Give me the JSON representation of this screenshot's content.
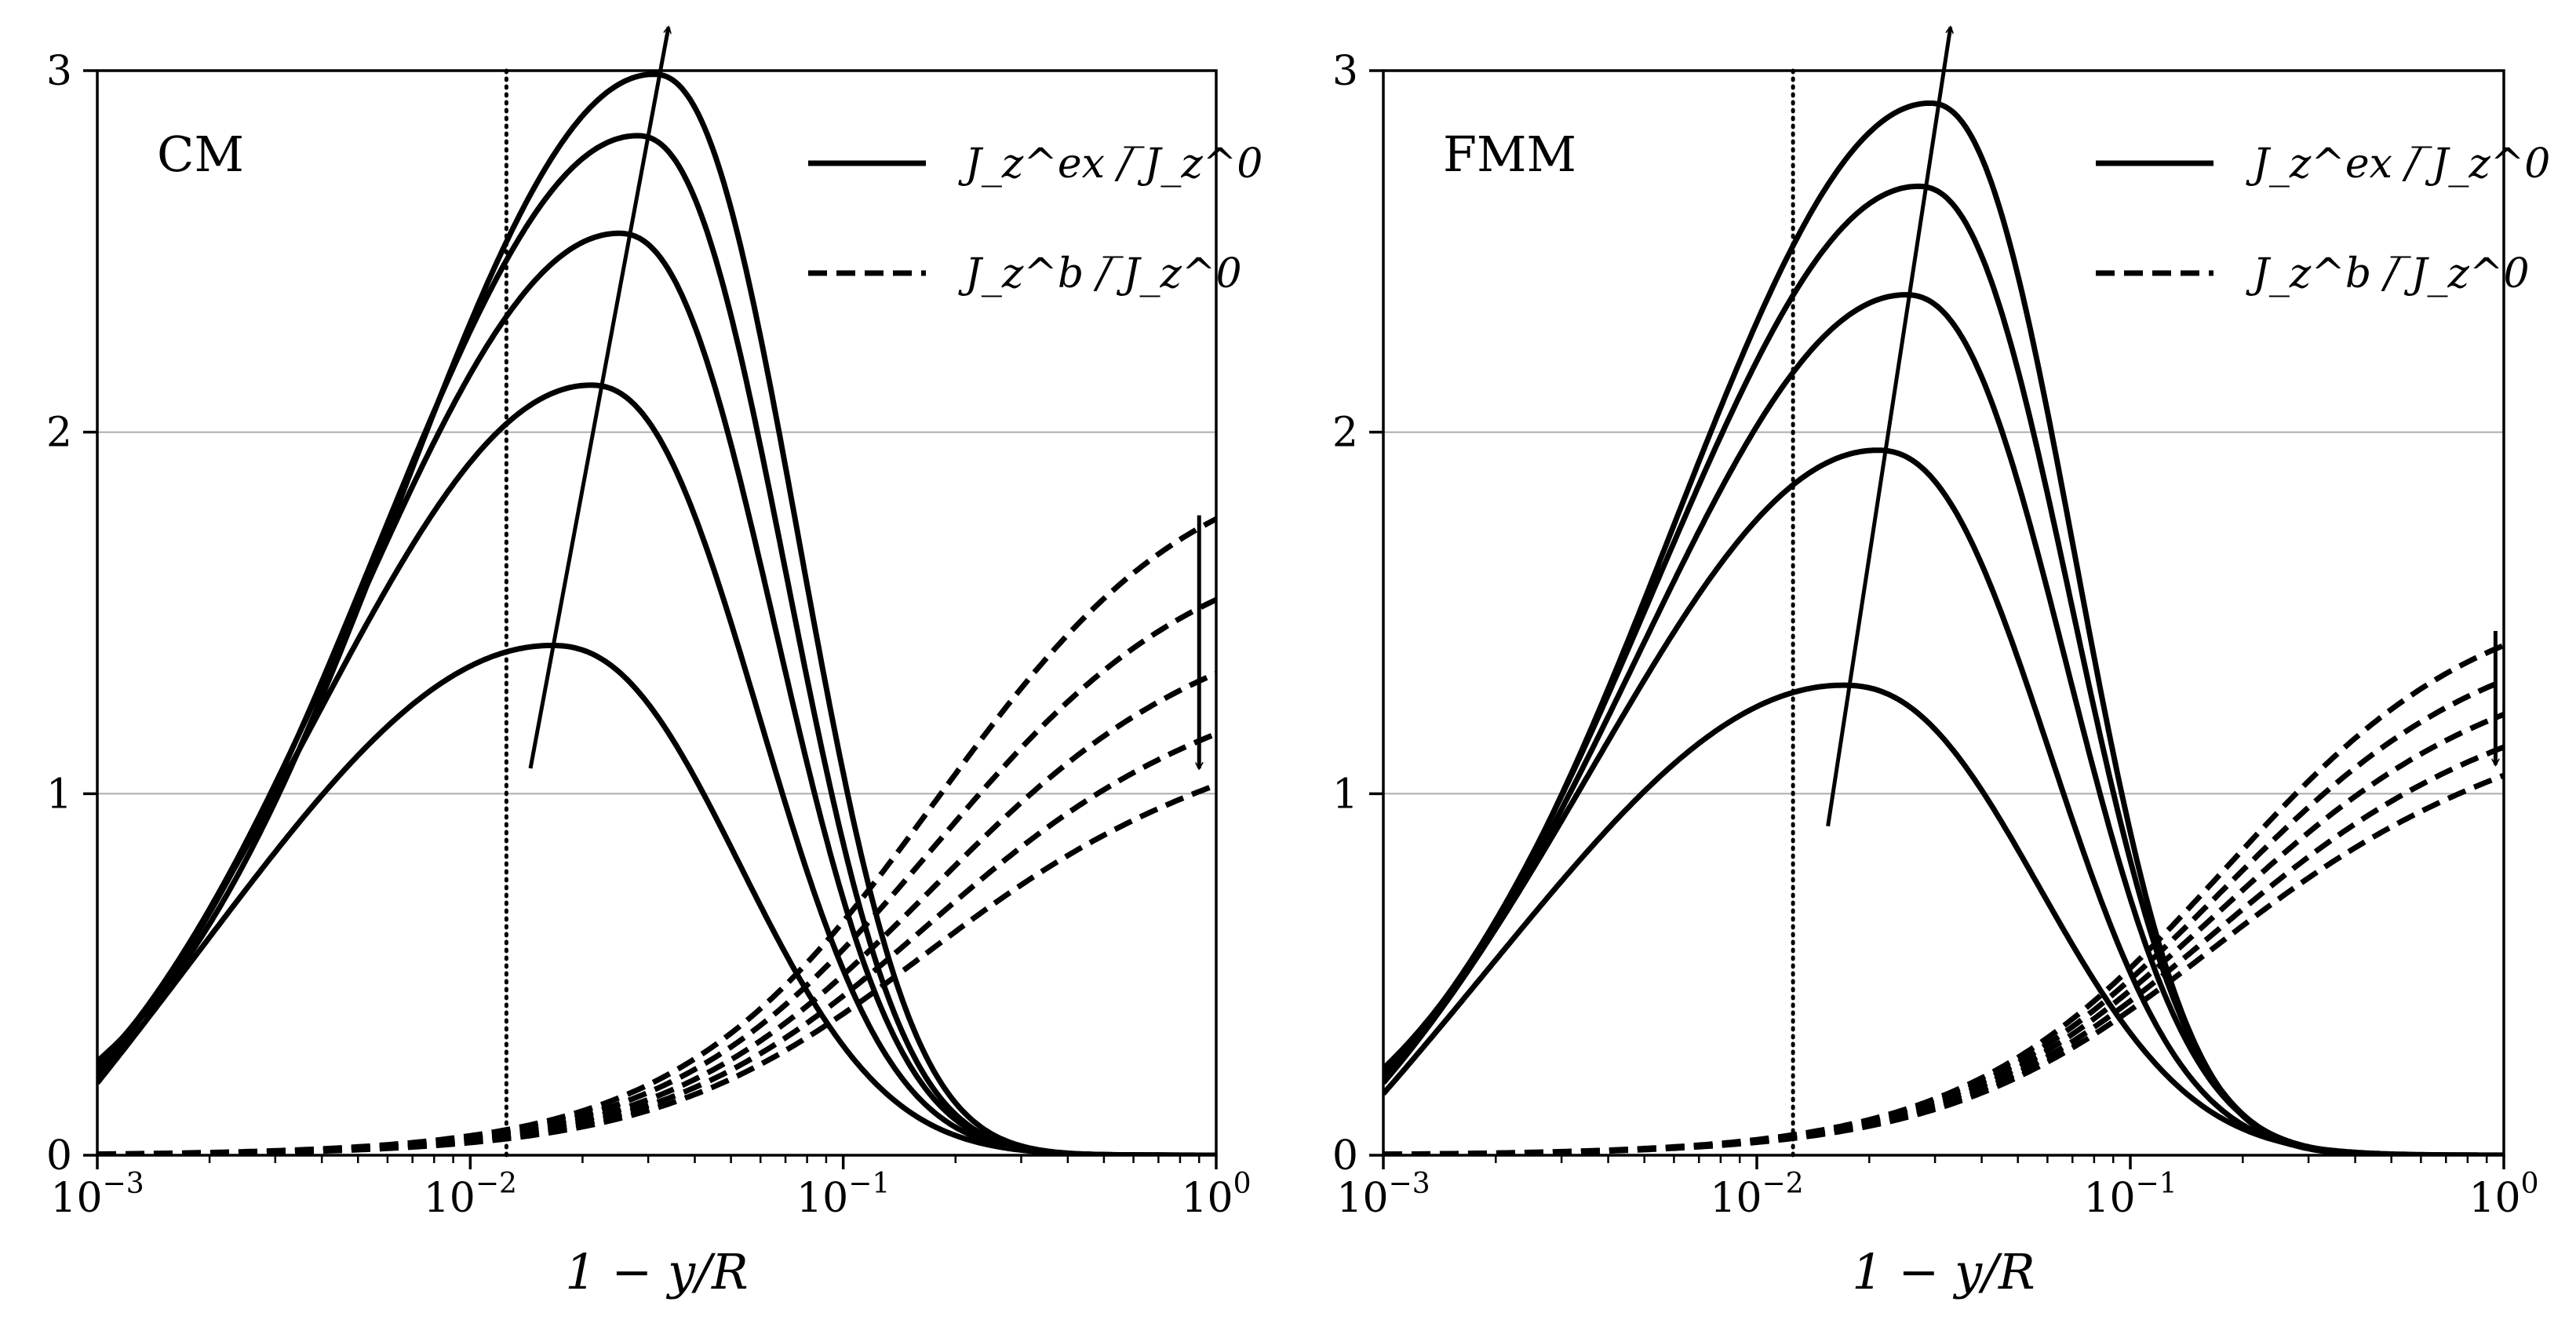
{
  "chart_data": [
    {
      "type": "line",
      "panel_label": "CM",
      "xlabel": "1 − y/R",
      "ylabel": "",
      "xscale": "log",
      "xlim": [
        0.001,
        1
      ],
      "ylim": [
        0,
        3
      ],
      "x_ticks": [
        0.001,
        0.01,
        0.1,
        1
      ],
      "x_tick_labels": [
        "10",
        "10",
        "10",
        "10"
      ],
      "x_tick_exponents": [
        "−3",
        "−2",
        "−1",
        "0"
      ],
      "y_ticks": [
        0,
        1,
        2,
        3
      ],
      "y_tick_labels": [
        "0",
        "1",
        "2",
        "3"
      ],
      "grid_y": [
        1,
        2
      ],
      "vertical_marker_x": 0.0125,
      "legend": [
        {
          "style": "solid",
          "label": "J_z^ex / ̅J_z^0"
        },
        {
          "style": "dashed",
          "label": "J_z^b / ̅J_z^0"
        }
      ],
      "legend_position": "top-right",
      "series_solid": [
        {
          "name": "J_z^ex 1",
          "peak_x": 0.0165,
          "peak_y": 1.41,
          "left_y": 0.2,
          "right_sigma": 0.48,
          "left_sigma": 0.82
        },
        {
          "name": "J_z^ex 2",
          "peak_x": 0.021,
          "peak_y": 2.13,
          "left_y": 0.22,
          "right_sigma": 0.43,
          "left_sigma": 0.72
        },
        {
          "name": "J_z^ex 3",
          "peak_x": 0.025,
          "peak_y": 2.55,
          "left_y": 0.24,
          "right_sigma": 0.4,
          "left_sigma": 0.7
        },
        {
          "name": "J_z^ex 4",
          "peak_x": 0.028,
          "peak_y": 2.82,
          "left_y": 0.25,
          "right_sigma": 0.38,
          "left_sigma": 0.69
        },
        {
          "name": "J_z^ex 5",
          "peak_x": 0.031,
          "peak_y": 2.99,
          "left_y": 0.26,
          "right_sigma": 0.37,
          "left_sigma": 0.68
        }
      ],
      "series_dashed": [
        {
          "name": "J_z^b 1",
          "end_y": 1.76
        },
        {
          "name": "J_z^b 2",
          "end_y": 1.58
        },
        {
          "name": "J_z^b 3",
          "end_y": 1.41
        },
        {
          "name": "J_z^b 4",
          "end_y": 1.27
        },
        {
          "name": "J_z^b 5",
          "end_y": 1.15
        }
      ],
      "trend_arrow_solid": {
        "from": [
          0.0145,
          1.07
        ],
        "to": [
          0.034,
          3.12
        ],
        "direction": "up"
      },
      "trend_arrow_dashed": {
        "x": 0.9,
        "from_y": 1.77,
        "to_y": 1.07,
        "direction": "down"
      }
    },
    {
      "type": "line",
      "panel_label": "FMM",
      "xlabel": "1 − y/R",
      "ylabel": "",
      "xscale": "log",
      "xlim": [
        0.001,
        1
      ],
      "ylim": [
        0,
        3
      ],
      "x_ticks": [
        0.001,
        0.01,
        0.1,
        1
      ],
      "x_tick_labels": [
        "10",
        "10",
        "10",
        "10"
      ],
      "x_tick_exponents": [
        "−3",
        "−2",
        "−1",
        "0"
      ],
      "y_ticks": [
        0,
        1,
        2,
        3
      ],
      "y_tick_labels": [
        "0",
        "1",
        "2",
        "3"
      ],
      "grid_y": [
        1,
        2
      ],
      "vertical_marker_x": 0.0125,
      "legend": [
        {
          "style": "solid",
          "label": "J_z^ex / ̅J_z^0"
        },
        {
          "style": "dashed",
          "label": "J_z^b / ̅J_z^0"
        }
      ],
      "legend_position": "top-right",
      "series_solid": [
        {
          "name": "J_z^ex 1",
          "peak_x": 0.017,
          "peak_y": 1.3,
          "left_y": 0.17,
          "right_sigma": 0.5,
          "left_sigma": 0.82
        },
        {
          "name": "J_z^ex 2",
          "peak_x": 0.021,
          "peak_y": 1.95,
          "left_y": 0.2,
          "right_sigma": 0.44,
          "left_sigma": 0.73
        },
        {
          "name": "J_z^ex 3",
          "peak_x": 0.025,
          "peak_y": 2.38,
          "left_y": 0.22,
          "right_sigma": 0.41,
          "left_sigma": 0.7
        },
        {
          "name": "J_z^ex 4",
          "peak_x": 0.027,
          "peak_y": 2.68,
          "left_y": 0.23,
          "right_sigma": 0.39,
          "left_sigma": 0.69
        },
        {
          "name": "J_z^ex 5",
          "peak_x": 0.029,
          "peak_y": 2.91,
          "left_y": 0.24,
          "right_sigma": 0.37,
          "left_sigma": 0.68
        }
      ],
      "series_dashed": [
        {
          "name": "J_z^b 1",
          "end_y": 1.41
        },
        {
          "name": "J_z^b 2",
          "end_y": 1.35
        },
        {
          "name": "J_z^b 3",
          "end_y": 1.29
        },
        {
          "name": "J_z^b 4",
          "end_y": 1.23
        },
        {
          "name": "J_z^b 5",
          "end_y": 1.18
        }
      ],
      "trend_arrow_solid": {
        "from": [
          0.0155,
          0.91
        ],
        "to": [
          0.033,
          3.12
        ],
        "direction": "up"
      },
      "trend_arrow_dashed": {
        "x": 0.95,
        "from_y": 1.45,
        "to_y": 1.08,
        "direction": "down"
      }
    }
  ]
}
